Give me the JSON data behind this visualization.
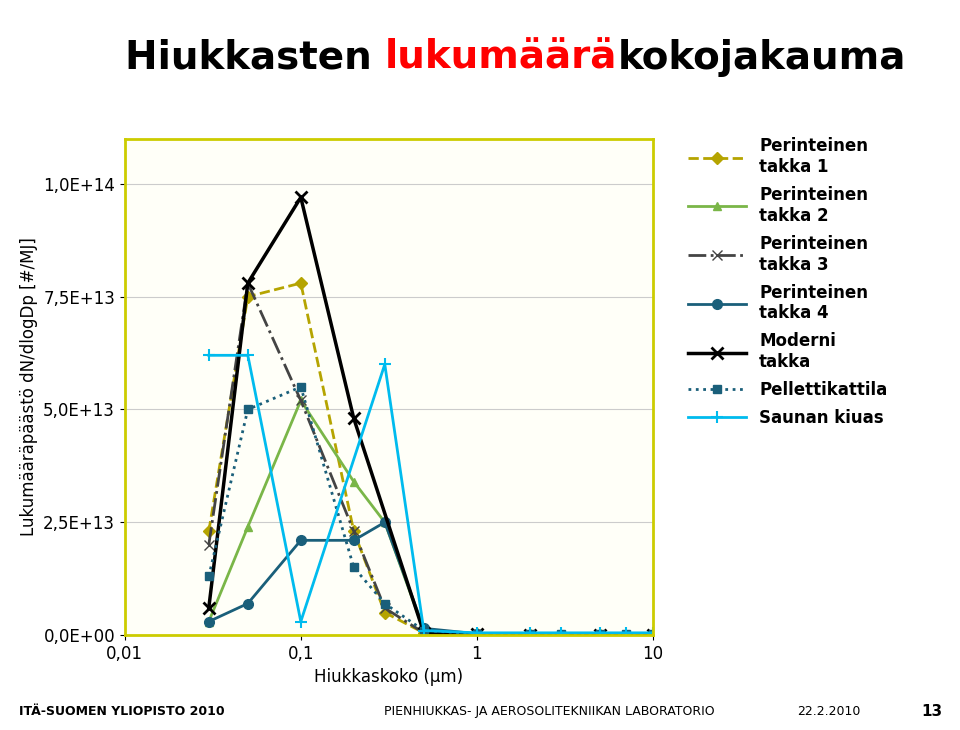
{
  "title_black1": "Hiukkasten ",
  "title_red": "lukumäärä",
  "title_black2": "kokojakauma",
  "ylabel": "Lukumääräpäästö dN/dlogDp [#/MJ]",
  "xlabel": "Hiukkaskoko (μm)",
  "xlim": [
    0.01,
    10
  ],
  "ylim": [
    0,
    110000000000000.0
  ],
  "yticks": [
    0,
    25000000000000.0,
    50000000000000.0,
    75000000000000.0,
    100000000000000.0
  ],
  "ytick_labels": [
    "0,0E+00",
    "2,5E+13",
    "5,0E+13",
    "7,5E+13",
    "1,0E+14"
  ],
  "xticks": [
    0.01,
    0.1,
    1,
    10
  ],
  "xtick_labels": [
    "0,01",
    "0,1",
    "1",
    "10"
  ],
  "series": {
    "perinteinen1": {
      "x": [
        0.03,
        0.05,
        0.1,
        0.2,
        0.3,
        0.5,
        1.0,
        2.0,
        5.0,
        10.0
      ],
      "y": [
        23000000000000.0,
        75000000000000.0,
        78000000000000.0,
        23000000000000.0,
        5000000000000.0,
        500000000000.0,
        200000000000.0,
        100000000000.0,
        100000000000.0,
        100000000000.0
      ],
      "color": "#b5a400",
      "linestyle": "--",
      "marker": "D",
      "markersize": 6,
      "label": "Perinteinen\ntakka 1"
    },
    "perinteinen2": {
      "x": [
        0.03,
        0.05,
        0.1,
        0.2,
        0.3,
        0.5,
        1.0,
        2.0,
        5.0,
        10.0
      ],
      "y": [
        3000000000000.0,
        24000000000000.0,
        52000000000000.0,
        34000000000000.0,
        25000000000000.0,
        1000000000000.0,
        200000000000.0,
        100000000000.0,
        100000000000.0,
        100000000000.0
      ],
      "color": "#7ab648",
      "linestyle": "-",
      "marker": "^",
      "markersize": 6,
      "label": "Perinteinen\ntakka 2"
    },
    "perinteinen3": {
      "x": [
        0.03,
        0.05,
        0.1,
        0.2,
        0.3,
        0.5,
        1.0,
        2.0,
        5.0,
        10.0
      ],
      "y": [
        20000000000000.0,
        78000000000000.0,
        52000000000000.0,
        23000000000000.0,
        6000000000000.0,
        500000000000.0,
        200000000000.0,
        100000000000.0,
        100000000000.0,
        100000000000.0
      ],
      "color": "#444444",
      "linestyle": "-.",
      "marker": "x",
      "markersize": 7,
      "label": "Perinteinen\ntakka 3"
    },
    "perinteinen4": {
      "x": [
        0.03,
        0.05,
        0.1,
        0.2,
        0.3,
        0.5,
        1.0,
        2.0,
        5.0,
        10.0
      ],
      "y": [
        3000000000000.0,
        7000000000000.0,
        21000000000000.0,
        21000000000000.0,
        25000000000000.0,
        1500000000000.0,
        300000000000.0,
        100000000000.0,
        100000000000.0,
        100000000000.0
      ],
      "color": "#1a5f7a",
      "linestyle": "-",
      "marker": "o",
      "markersize": 7,
      "label": "Perinteinen\ntakka 4"
    },
    "moderni": {
      "x": [
        0.03,
        0.05,
        0.1,
        0.2,
        0.5,
        1.0,
        2.0,
        5.0,
        10.0
      ],
      "y": [
        6000000000000.0,
        78000000000000.0,
        97000000000000.0,
        48000000000000.0,
        500000000000.0,
        200000000000.0,
        100000000000.0,
        100000000000.0,
        100000000000.0
      ],
      "color": "#000000",
      "linestyle": "-",
      "marker": "x",
      "markersize": 9,
      "markeredgewidth": 2,
      "label": "Moderni\ntakka"
    },
    "pelletti": {
      "x": [
        0.03,
        0.05,
        0.1,
        0.2,
        0.3,
        0.5,
        1.0,
        2.0,
        3.0,
        5.0,
        7.0,
        10.0
      ],
      "y": [
        13000000000000.0,
        50000000000000.0,
        55000000000000.0,
        15000000000000.0,
        7000000000000.0,
        1000000000000.0,
        300000000000.0,
        200000000000.0,
        200000000000.0,
        200000000000.0,
        200000000000.0,
        200000000000.0
      ],
      "color": "#1a5f7a",
      "linestyle": ":",
      "marker": "s",
      "markersize": 6,
      "label": "Pellettikattila"
    },
    "sauna": {
      "x": [
        0.03,
        0.05,
        0.1,
        0.3,
        0.5,
        1.0,
        2.0,
        3.0,
        5.0,
        7.0,
        10.0
      ],
      "y": [
        62000000000000.0,
        62000000000000.0,
        3000000000000.0,
        60000000000000.0,
        1000000000000.0,
        500000000000.0,
        500000000000.0,
        500000000000.0,
        500000000000.0,
        500000000000.0,
        500000000000.0
      ],
      "color": "#00bbee",
      "linestyle": "-",
      "marker": "+",
      "markersize": 9,
      "markeredgewidth": 1.5,
      "label": "Saunan kiuas"
    }
  },
  "plot_bg": "#fffff8",
  "border_color": "#cccc00",
  "fig_bg": "#ffffff",
  "title_fontsize": 28,
  "axis_label_fontsize": 12,
  "tick_fontsize": 12,
  "legend_fontsize": 12,
  "footer_bg": "#a8d8e0",
  "footer_text1": "ITÄ-SUOMEN YLIOPISTO 2010",
  "footer_text2": "PIENHIUKKAS- JA AEROSOLITEKNIIKAN LABORATORIO",
  "footer_text3": "22.2.2010",
  "footer_page": "13"
}
